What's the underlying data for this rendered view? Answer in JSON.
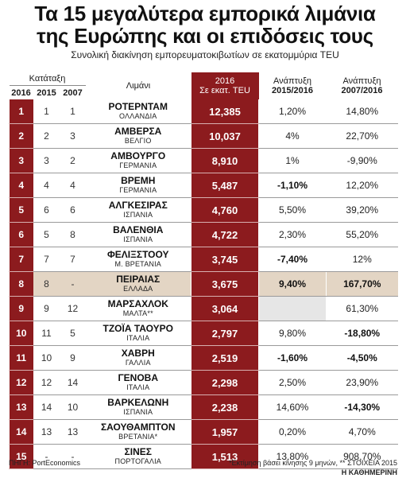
{
  "header": {
    "title_line1": "Τα 15 μεγαλύτερα εμπορικά λιμάνια",
    "title_line2": "της Ευρώπης και οι επιδόσεις τους",
    "subtitle": "Συνολική διακίνηση εμπορευματοκιβωτίων σε εκατομμύρια TEU"
  },
  "columns": {
    "rank_group": "Κατάταξη",
    "rank_2016": "2016",
    "rank_2015": "2015",
    "rank_2007": "2007",
    "port": "Λιμάνι",
    "teu_line1": "2016",
    "teu_line2": "Σε εκατ. TEU",
    "growth1_line1": "Ανάπτυξη",
    "growth1_line2": "2015/2016",
    "growth2_line1": "Ανάπτυξη",
    "growth2_line2": "2007/2016"
  },
  "rows": [
    {
      "r2016": "1",
      "r2015": "1",
      "r2007": "1",
      "port": "ΡΟΤΕΡΝΤΑΜ",
      "country": "ΟΛΛΑΝΔΙΑ",
      "teu": "12,385",
      "g1": "1,20%",
      "g2": "14,80%",
      "g1_bold": false,
      "g2_bold": false
    },
    {
      "r2016": "2",
      "r2015": "2",
      "r2007": "3",
      "port": "ΑΜΒΕΡΣΑ",
      "country": "ΒΕΛΓΙΟ",
      "teu": "10,037",
      "g1": "4%",
      "g2": "22,70%",
      "g1_bold": false,
      "g2_bold": false
    },
    {
      "r2016": "3",
      "r2015": "3",
      "r2007": "2",
      "port": "ΑΜΒΟΥΡΓΟ",
      "country": "ΓΕΡΜΑΝΙΑ",
      "teu": "8,910",
      "g1": "1%",
      "g2": "-9,90%",
      "g1_bold": false,
      "g2_bold": false
    },
    {
      "r2016": "4",
      "r2015": "4",
      "r2007": "4",
      "port": "ΒΡΕΜΗ",
      "country": "ΓΕΡΜΑΝΙΑ",
      "teu": "5,487",
      "g1": "-1,10%",
      "g2": "12,20%",
      "g1_bold": true,
      "g2_bold": false
    },
    {
      "r2016": "5",
      "r2015": "6",
      "r2007": "6",
      "port": "ΑΛΓΚΕΣΙΡΑΣ",
      "country": "ΙΣΠΑΝΙΑ",
      "teu": "4,760",
      "g1": "5,50%",
      "g2": "39,20%",
      "g1_bold": false,
      "g2_bold": false
    },
    {
      "r2016": "6",
      "r2015": "5",
      "r2007": "8",
      "port": "ΒΑΛΕΝΘΙΑ",
      "country": "ΙΣΠΑΝΙΑ",
      "teu": "4,722",
      "g1": "2,30%",
      "g2": "55,20%",
      "g1_bold": false,
      "g2_bold": false
    },
    {
      "r2016": "7",
      "r2015": "7",
      "r2007": "7",
      "port": "ΦΕΛΙΞΣΤΟΟΥ",
      "country": "Μ. ΒΡΕΤΑΝΙΑ",
      "teu": "3,745",
      "g1": "-7,40%",
      "g2": "12%",
      "g1_bold": true,
      "g2_bold": false
    },
    {
      "r2016": "8",
      "r2015": "8",
      "r2007": "-",
      "port": "ΠΕΙΡΑΙΑΣ",
      "country": "ΕΛΛΑΔΑ",
      "teu": "3,675",
      "g1": "9,40%",
      "g2": "167,70%",
      "g1_bold": true,
      "g2_bold": true,
      "highlight": true
    },
    {
      "r2016": "9",
      "r2015": "9",
      "r2007": "12",
      "port": "ΜΑΡΣΑΧΛΟΚ",
      "country": "ΜΑΛΤΑ**",
      "teu": "3,064",
      "g1": "",
      "g2": "61,30%",
      "g1_bold": false,
      "g2_bold": false,
      "g1_shade": true
    },
    {
      "r2016": "10",
      "r2015": "11",
      "r2007": "5",
      "port": "ΤΖΟΪΑ ΤΑΟΥΡΟ",
      "country": "ΙΤΑΛΙΑ",
      "teu": "2,797",
      "g1": "9,80%",
      "g2": "-18,80%",
      "g1_bold": false,
      "g2_bold": true
    },
    {
      "r2016": "11",
      "r2015": "10",
      "r2007": "9",
      "port": "ΧΑΒΡΗ",
      "country": "ΓΑΛΛΙΑ",
      "teu": "2,519",
      "g1": "-1,60%",
      "g2": "-4,50%",
      "g1_bold": true,
      "g2_bold": true
    },
    {
      "r2016": "12",
      "r2015": "12",
      "r2007": "14",
      "port": "ΓΕΝΟΒΑ",
      "country": "ΙΤΑΛΙΑ",
      "teu": "2,298",
      "g1": "2,50%",
      "g2": "23,90%",
      "g1_bold": false,
      "g2_bold": false
    },
    {
      "r2016": "13",
      "r2015": "14",
      "r2007": "10",
      "port": "ΒΑΡΚΕΛΩΝΗ",
      "country": "ΙΣΠΑΝΙΑ",
      "teu": "2,238",
      "g1": "14,60%",
      "g2": "-14,30%",
      "g1_bold": false,
      "g2_bold": true
    },
    {
      "r2016": "14",
      "r2015": "13",
      "r2007": "13",
      "port": "ΣΑΟΥΘΑΜΠΤΟΝ",
      "country": "ΒΡΕΤΑΝΙΑ*",
      "teu": "1,957",
      "g1": "0,20%",
      "g2": "4,70%",
      "g1_bold": false,
      "g2_bold": false
    },
    {
      "r2016": "15",
      "r2015": "-",
      "r2007": "-",
      "port": "ΣΙΝΕΣ",
      "country": "ΠΟΡΤΟΓΑΛΙΑ",
      "teu": "1,513",
      "g1": "13,80%",
      "g2": "908,70%",
      "g1_bold": false,
      "g2_bold": false
    }
  ],
  "footer": {
    "source": "ΠΗΓΗ: PortEconomics",
    "note": "*Εκτίμηση βάσει κίνησης 9 μηνών, ** ΣΤΟΙΧΕΙΑ 2015",
    "brand": "Η ΚΑΘΗΜΕΡΙΝΗ"
  },
  "colors": {
    "accent": "#8c1b1e",
    "highlight_row": "#e3d5c4",
    "empty_cell": "#e6e6e6"
  }
}
